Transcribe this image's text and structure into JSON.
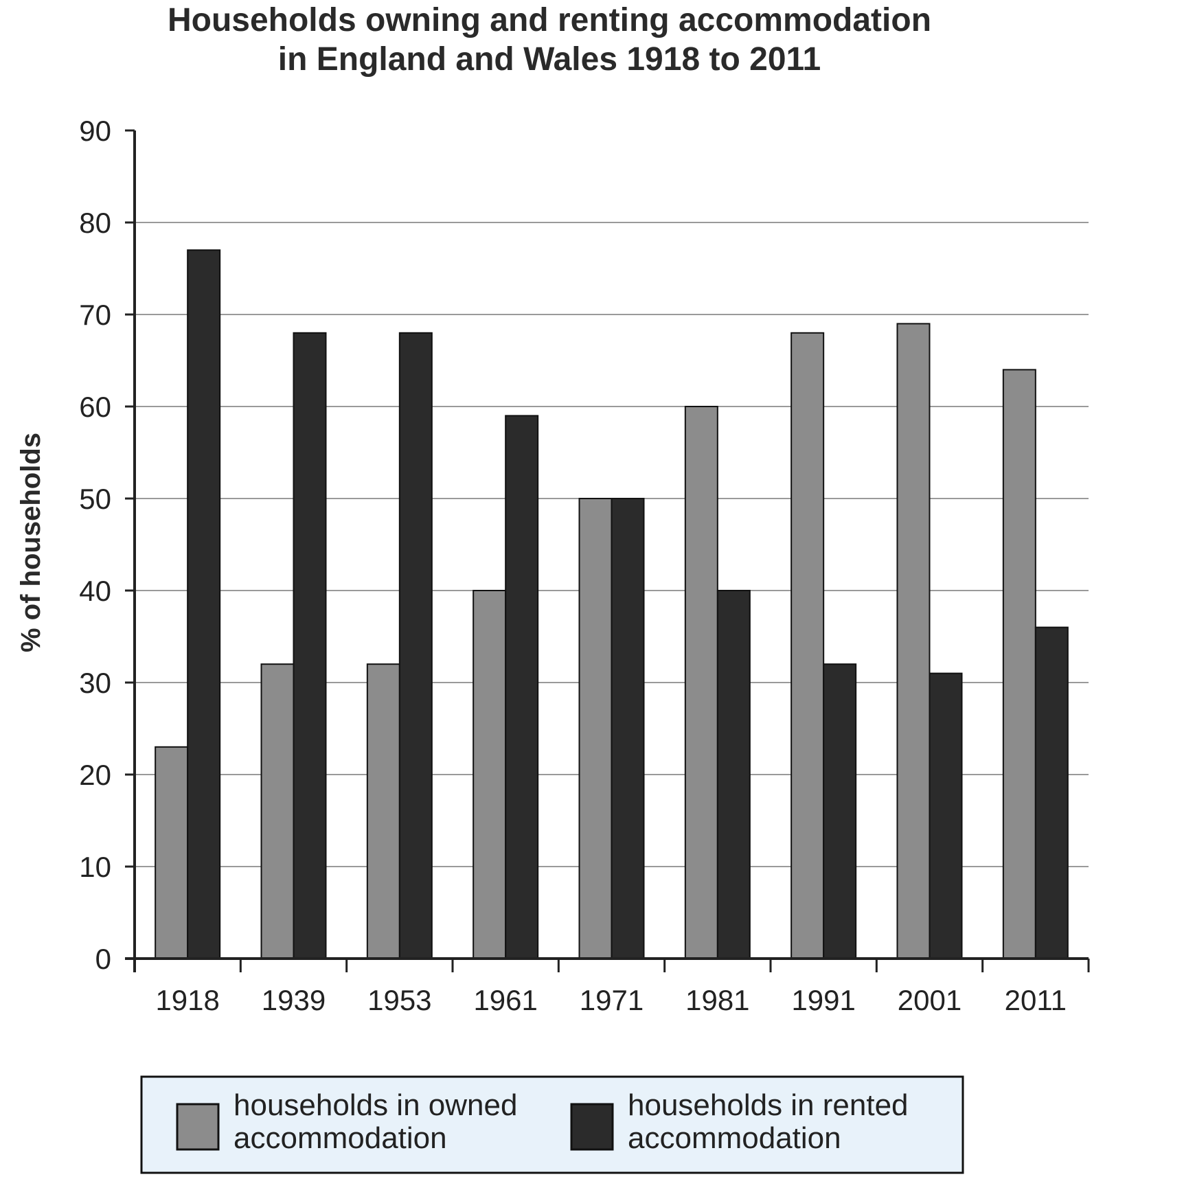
{
  "chart_data": {
    "type": "bar",
    "title": "Households owning and renting accommodation",
    "subtitle": "in England and Wales 1918 to 2011",
    "xlabel": "",
    "ylabel": "% of households",
    "ylim": [
      0,
      90
    ],
    "yticks": [
      0,
      10,
      20,
      30,
      40,
      50,
      60,
      70,
      80,
      90
    ],
    "grid": true,
    "legend_position": "bottom",
    "categories": [
      "1918",
      "1939",
      "1953",
      "1961",
      "1971",
      "1981",
      "1991",
      "2001",
      "2011"
    ],
    "series": [
      {
        "name": "households in owned accommodation",
        "name_lines": [
          "households in owned",
          "accommodation"
        ],
        "color": "#8c8c8c",
        "values": [
          23,
          32,
          32,
          40,
          50,
          60,
          68,
          69,
          64
        ]
      },
      {
        "name": "households in rented accommodation",
        "name_lines": [
          "households in rented",
          "accommodation"
        ],
        "color": "#2b2b2b",
        "values": [
          77,
          68,
          68,
          59,
          50,
          40,
          32,
          31,
          36
        ]
      }
    ],
    "colors": {
      "legend_background": "#e8f2fa",
      "gridline": "#9a9a9a",
      "axis": "#222222"
    }
  }
}
